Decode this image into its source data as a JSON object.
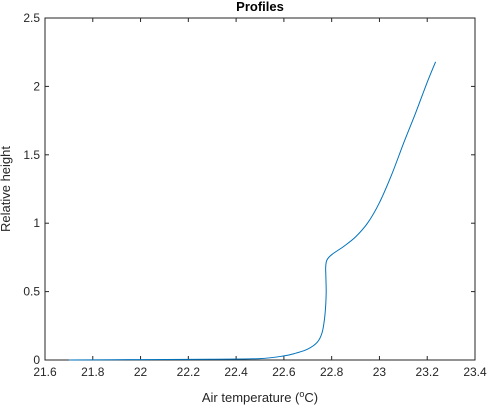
{
  "chart_data": {
    "type": "line",
    "title": "Profiles",
    "xlabel": {
      "prefix": "Air temperature (",
      "sup": "o",
      "suffix": "C)"
    },
    "ylabel": "Relative height",
    "xlim": [
      21.6,
      23.4
    ],
    "ylim": [
      0,
      2.5
    ],
    "xticks": [
      21.6,
      21.8,
      22.0,
      22.2,
      22.4,
      22.6,
      22.8,
      23.0,
      23.2,
      23.4
    ],
    "xtick_labels": [
      "21.6",
      "21.8",
      "22",
      "22.2",
      "22.4",
      "22.6",
      "22.8",
      "23",
      "23.2",
      "23.4"
    ],
    "yticks": [
      0,
      0.5,
      1.0,
      1.5,
      2.0,
      2.5
    ],
    "ytick_labels": [
      "0",
      "0.5",
      "1",
      "1.5",
      "2",
      "2.5"
    ],
    "grid": false,
    "series": [
      {
        "color": "#0072BD",
        "x": [
          21.7,
          22.0,
          22.3,
          22.5,
          22.6,
          22.65,
          22.7,
          22.74,
          22.76,
          22.77,
          22.775,
          22.777,
          22.776,
          22.775,
          22.78,
          22.8,
          22.85,
          22.9,
          22.95,
          23.0,
          23.05,
          23.1,
          23.15,
          23.2,
          23.235
        ],
        "y": [
          0.0,
          0.003,
          0.006,
          0.01,
          0.03,
          0.05,
          0.08,
          0.13,
          0.2,
          0.3,
          0.4,
          0.5,
          0.6,
          0.68,
          0.73,
          0.77,
          0.83,
          0.9,
          1.0,
          1.15,
          1.35,
          1.58,
          1.8,
          2.03,
          2.18
        ]
      }
    ]
  }
}
